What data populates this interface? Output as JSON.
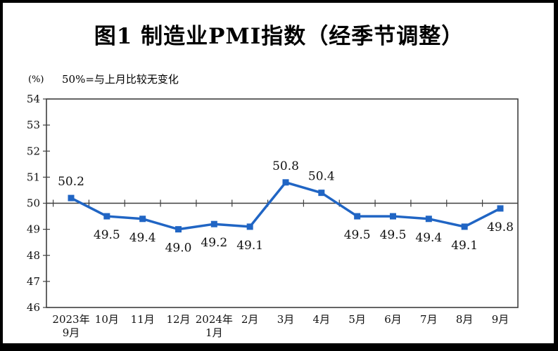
{
  "title": "图1 制造业PMI指数（经季节调整）",
  "y_unit_label": "(%)",
  "reference_note": "50%=与上月比较无变化",
  "colors": {
    "line": "#2065c4",
    "marker": "#2065c4",
    "axis": "#3f3f3f",
    "text": "#000000",
    "frame": "#000000"
  },
  "chart_data": {
    "type": "line",
    "title": "图1 制造业PMI指数（经季节调整）",
    "xlabel": "",
    "ylabel": "(%)",
    "ylim": [
      46,
      54
    ],
    "yticks": [
      46,
      47,
      48,
      49,
      50,
      51,
      52,
      53,
      54
    ],
    "grid": false,
    "legend": "none",
    "reference_line": 50,
    "categories": [
      [
        "2023年",
        "9月"
      ],
      [
        "10月"
      ],
      [
        "11月"
      ],
      [
        "12月"
      ],
      [
        "2024年",
        "1月"
      ],
      [
        "2月"
      ],
      [
        "3月"
      ],
      [
        "4月"
      ],
      [
        "5月"
      ],
      [
        "6月"
      ],
      [
        "7月"
      ],
      [
        "8月"
      ],
      [
        "9月"
      ]
    ],
    "values": [
      50.2,
      49.5,
      49.4,
      49.0,
      49.2,
      49.1,
      50.8,
      50.4,
      49.5,
      49.5,
      49.4,
      49.1,
      49.8
    ],
    "data_labels": [
      "50.2",
      "49.5",
      "49.4",
      "49.0",
      "49.2",
      "49.1",
      "50.8",
      "50.4",
      "49.5",
      "49.5",
      "49.4",
      "49.1",
      "49.8"
    ]
  }
}
